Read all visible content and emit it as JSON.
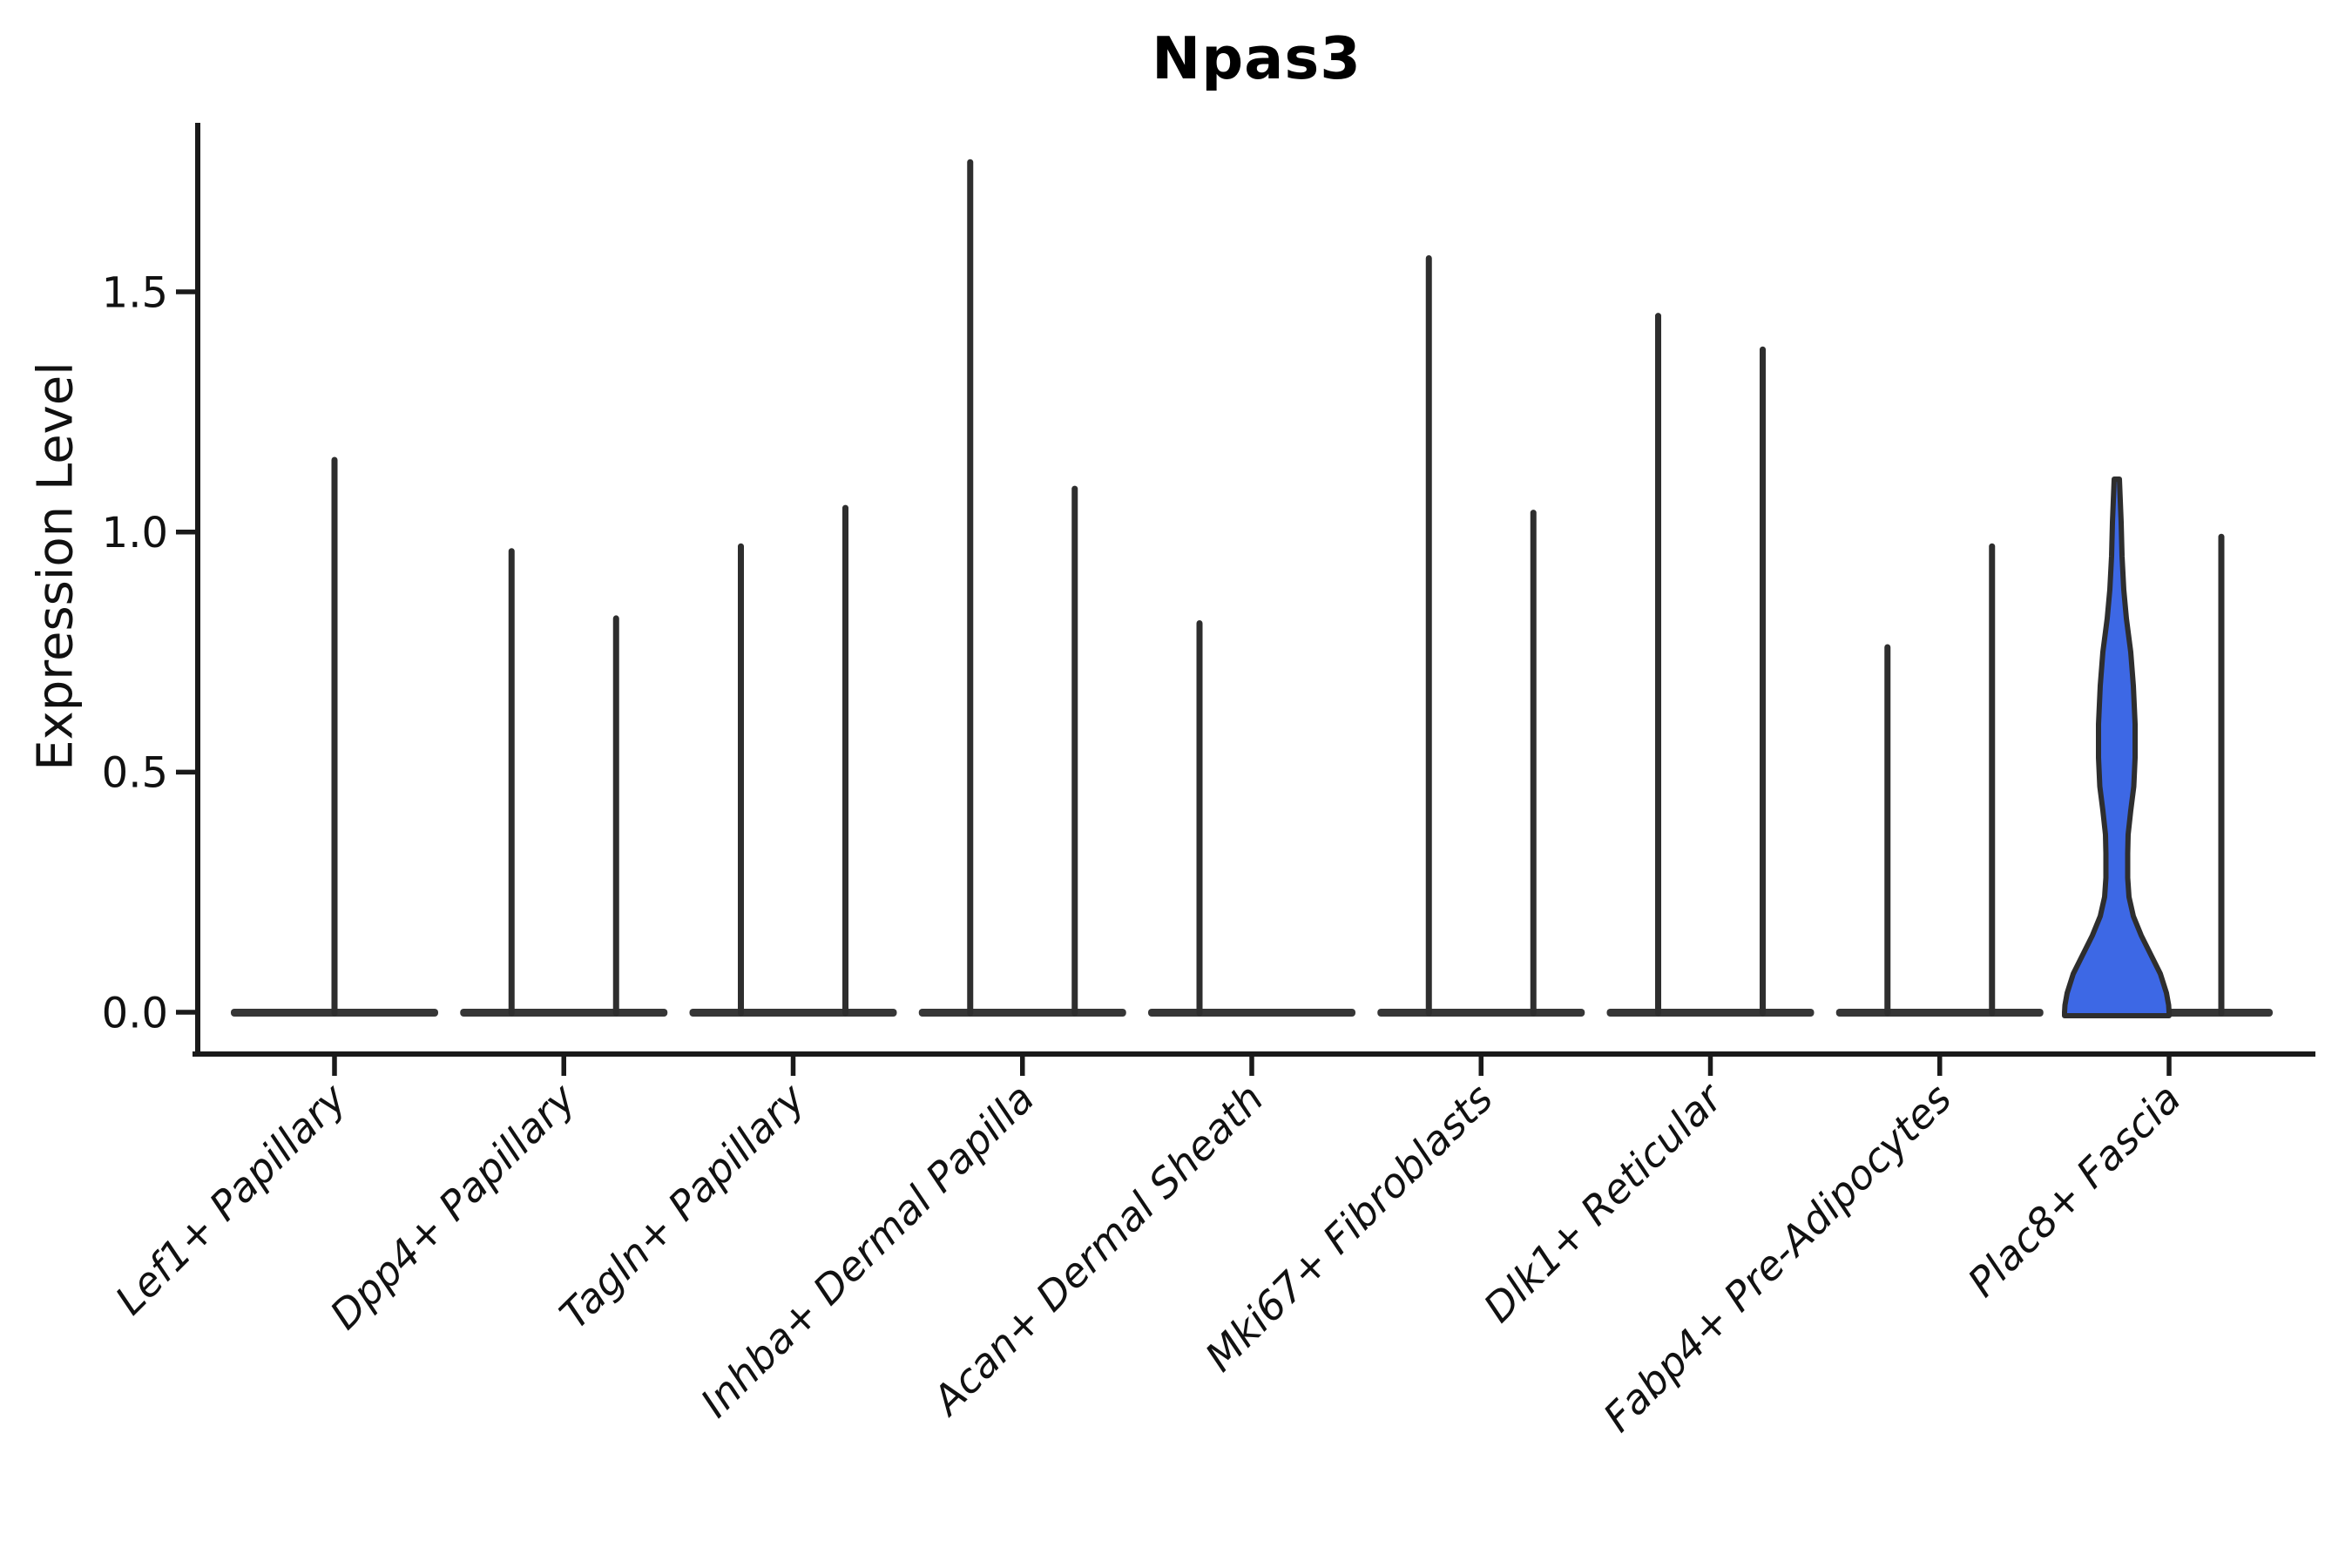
{
  "colors": {
    "violin_fill_accent": "#3d68e5",
    "violin_outline": "#2e2e2e",
    "violin_base": "#363636",
    "axis": "#1a1a1a",
    "text": "#111111",
    "background": "#ffffff"
  },
  "chart_data": {
    "type": "violin",
    "title": "Npas3",
    "ylabel": "Expression Level",
    "xlabel": "",
    "ylim": [
      0,
      1.85
    ],
    "yticks": [
      0.0,
      0.5,
      1.0,
      1.5
    ],
    "ytick_labels": [
      "0.0",
      "0.5",
      "1.0",
      "1.5"
    ],
    "grid": false,
    "legend": "none",
    "categories": [
      "Lef1+ Papillary",
      "Dpp4+ Papillary",
      "Tagln+ Papillary",
      "Inhba+ Dermal Papilla",
      "Acan+ Dermal Sheath",
      "Mki67+ Fibroblasts",
      "Dlk1+ Reticular",
      "Fabp4+ Pre-Adipocytes",
      "Plac8+ Fascia"
    ],
    "violins": [
      {
        "category_index": 0,
        "position": "center",
        "max_expression": 1.15,
        "filled": false
      },
      {
        "category_index": 1,
        "position": "left",
        "max_expression": 0.96,
        "filled": false
      },
      {
        "category_index": 1,
        "position": "right",
        "max_expression": 0.82,
        "filled": false
      },
      {
        "category_index": 2,
        "position": "left",
        "max_expression": 0.97,
        "filled": false
      },
      {
        "category_index": 2,
        "position": "right",
        "max_expression": 1.05,
        "filled": false
      },
      {
        "category_index": 3,
        "position": "left",
        "max_expression": 1.77,
        "filled": false
      },
      {
        "category_index": 3,
        "position": "right",
        "max_expression": 1.09,
        "filled": false
      },
      {
        "category_index": 4,
        "position": "left",
        "max_expression": 0.81,
        "filled": false
      },
      {
        "category_index": 5,
        "position": "left",
        "max_expression": 1.57,
        "filled": false
      },
      {
        "category_index": 5,
        "position": "right",
        "max_expression": 1.04,
        "filled": false
      },
      {
        "category_index": 6,
        "position": "left",
        "max_expression": 1.45,
        "filled": false
      },
      {
        "category_index": 6,
        "position": "right",
        "max_expression": 1.38,
        "filled": false
      },
      {
        "category_index": 7,
        "position": "left",
        "max_expression": 0.76,
        "filled": false
      },
      {
        "category_index": 7,
        "position": "right",
        "max_expression": 0.97,
        "filled": false
      },
      {
        "category_index": 8,
        "position": "left",
        "max_expression": 1.11,
        "filled": true,
        "profile": [
          [
            1.11,
            3
          ],
          [
            1.02,
            5
          ],
          [
            0.95,
            6
          ],
          [
            0.88,
            8
          ],
          [
            0.82,
            11
          ],
          [
            0.75,
            16
          ],
          [
            0.68,
            19
          ],
          [
            0.6,
            21
          ],
          [
            0.53,
            21
          ],
          [
            0.47,
            19.5
          ],
          [
            0.42,
            16
          ],
          [
            0.37,
            13
          ],
          [
            0.33,
            12.5
          ],
          [
            0.28,
            12.5
          ],
          [
            0.24,
            14
          ],
          [
            0.2,
            19
          ],
          [
            0.16,
            28
          ],
          [
            0.12,
            39
          ],
          [
            0.08,
            50
          ],
          [
            0.04,
            57
          ],
          [
            0.015,
            59.5
          ],
          [
            0.0,
            60
          ]
        ]
      },
      {
        "category_index": 8,
        "position": "right",
        "max_expression": 0.99,
        "filled": false
      }
    ]
  }
}
